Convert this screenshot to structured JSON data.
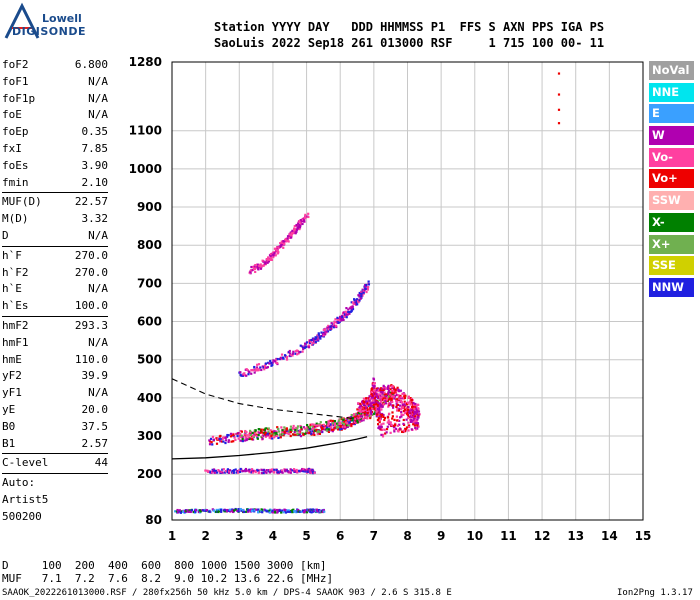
{
  "logo": {
    "line1": "Lowell",
    "line2": "DIGISONDE"
  },
  "header": {
    "row1": "Station YYYY DAY   DDD HHMMSS P1  FFS S AXN PPS IGA PS",
    "row2": "SaoLuis 2022 Sep18 261 013000 RSF     1 715 100 00- 11"
  },
  "params": [
    [
      {
        "k": "foF2",
        "v": "6.800"
      },
      {
        "k": "foF1",
        "v": "N/A"
      },
      {
        "k": "foF1p",
        "v": "N/A"
      },
      {
        "k": "foE",
        "v": "N/A"
      },
      {
        "k": "foEp",
        "v": "0.35"
      },
      {
        "k": "fxI",
        "v": "7.85"
      },
      {
        "k": "foEs",
        "v": "3.90"
      },
      {
        "k": "fmin",
        "v": "2.10"
      }
    ],
    [
      {
        "k": "MUF(D)",
        "v": "22.57"
      },
      {
        "k": "M(D)",
        "v": "3.32"
      },
      {
        "k": "D",
        "v": "N/A"
      }
    ],
    [
      {
        "k": "h`F",
        "v": "270.0"
      },
      {
        "k": "h`F2",
        "v": "270.0"
      },
      {
        "k": "h`E",
        "v": "N/A"
      },
      {
        "k": "h`Es",
        "v": "100.0"
      }
    ],
    [
      {
        "k": "hmF2",
        "v": "293.3"
      },
      {
        "k": "hmF1",
        "v": "N/A"
      },
      {
        "k": "hmE",
        "v": "110.0"
      },
      {
        "k": "yF2",
        "v": "39.9"
      },
      {
        "k": "yF1",
        "v": "N/A"
      },
      {
        "k": "yE",
        "v": "20.0"
      },
      {
        "k": "B0",
        "v": "37.5"
      },
      {
        "k": "B1",
        "v": "2.57"
      }
    ],
    [
      {
        "k": "C-level",
        "v": "44"
      }
    ]
  ],
  "auto": [
    "Auto:",
    "Artist5",
    "500200"
  ],
  "legend": [
    {
      "label": "NoVal",
      "color": "#a0a0a0"
    },
    {
      "label": "NNE",
      "color": "#00e5ee"
    },
    {
      "label": "E",
      "color": "#3aa0ff"
    },
    {
      "label": "W",
      "color": "#b000b0"
    },
    {
      "label": "Vo-",
      "color": "#ff40a0"
    },
    {
      "label": "Vo+",
      "color": "#ee0000"
    },
    {
      "label": "SSW",
      "color": "#ffb0b0"
    },
    {
      "label": "X-",
      "color": "#008000"
    },
    {
      "label": "X+",
      "color": "#70b050"
    },
    {
      "label": "SSE",
      "color": "#d0d000"
    },
    {
      "label": "NNW",
      "color": "#2020e0"
    }
  ],
  "footer": {
    "d_row": "D     100  200  400  600  800 1000 1500 3000 [km]",
    "muf_row": "MUF   7.1  7.2  7.6  8.2  9.0 10.2 13.6 22.6 [MHz]",
    "info": "SAAOK_2022261013000.RSF / 280fx256h 50 kHz 5.0 km / DPS-4 SAAOK 903 / 2.6 S 315.8 E",
    "version": "Ion2Png 1.3.17"
  },
  "chart_data": {
    "type": "scatter",
    "x_ticks": [
      "1",
      "2",
      "3",
      "4",
      "5",
      "6",
      "7",
      "8",
      "9",
      "10",
      "11",
      "12",
      "13",
      "14",
      "15"
    ],
    "y_ticks": [
      "80",
      "200",
      "300",
      "400",
      "500",
      "600",
      "700",
      "800",
      "900",
      "1000",
      "1100",
      "1280"
    ],
    "xlim": [
      1,
      15
    ],
    "ylim": [
      80,
      1280
    ],
    "grid": true,
    "traces": {
      "o_trace": [
        [
          2.1,
          290
        ],
        [
          3,
          300
        ],
        [
          4,
          308
        ],
        [
          5,
          315
        ],
        [
          5.5,
          322
        ],
        [
          6,
          330
        ],
        [
          6.4,
          345
        ],
        [
          6.6,
          360
        ],
        [
          6.8,
          395
        ]
      ],
      "x_trace": [
        [
          3,
          305
        ],
        [
          4,
          312
        ],
        [
          5,
          320
        ],
        [
          6,
          335
        ],
        [
          6.8,
          360
        ],
        [
          7.2,
          395
        ],
        [
          7.6,
          420
        ]
      ],
      "second_hop": [
        [
          3,
          465
        ],
        [
          4,
          495
        ],
        [
          5,
          540
        ],
        [
          5.5,
          575
        ],
        [
          6,
          610
        ],
        [
          6.5,
          660
        ],
        [
          6.8,
          700
        ]
      ],
      "third_hop": [
        [
          3.3,
          735
        ],
        [
          3.8,
          760
        ],
        [
          4.2,
          800
        ],
        [
          4.6,
          840
        ],
        [
          5,
          880
        ]
      ],
      "sporadic_e": [
        [
          2,
          210
        ],
        [
          3,
          212
        ],
        [
          4,
          210
        ],
        [
          5,
          212
        ],
        [
          5.2,
          210
        ]
      ],
      "low_band": [
        [
          1.1,
          105
        ],
        [
          2,
          107
        ],
        [
          3,
          108
        ],
        [
          4,
          106
        ],
        [
          5,
          107
        ],
        [
          5.5,
          106
        ]
      ],
      "spread_F": [
        [
          6.5,
          360
        ],
        [
          7,
          400
        ],
        [
          7.5,
          410
        ],
        [
          8,
          380
        ],
        [
          8.3,
          350
        ],
        [
          7.2,
          330
        ],
        [
          6.9,
          440
        ]
      ]
    },
    "profile_curve": [
      [
        1,
        240
      ],
      [
        2,
        243
      ],
      [
        3,
        249
      ],
      [
        4,
        257
      ],
      [
        5,
        268
      ],
      [
        6,
        283
      ],
      [
        6.5,
        292
      ],
      [
        6.8,
        298
      ]
    ],
    "dashed_curve": [
      [
        1,
        450
      ],
      [
        1.5,
        430
      ],
      [
        2,
        410
      ],
      [
        3,
        385
      ],
      [
        4,
        370
      ],
      [
        5,
        360
      ],
      [
        6,
        350
      ],
      [
        6.5,
        345
      ]
    ],
    "isolated_points": [
      [
        12.5,
        1250
      ],
      [
        12.5,
        1195
      ],
      [
        12.5,
        1155
      ],
      [
        12.5,
        1120
      ]
    ]
  }
}
